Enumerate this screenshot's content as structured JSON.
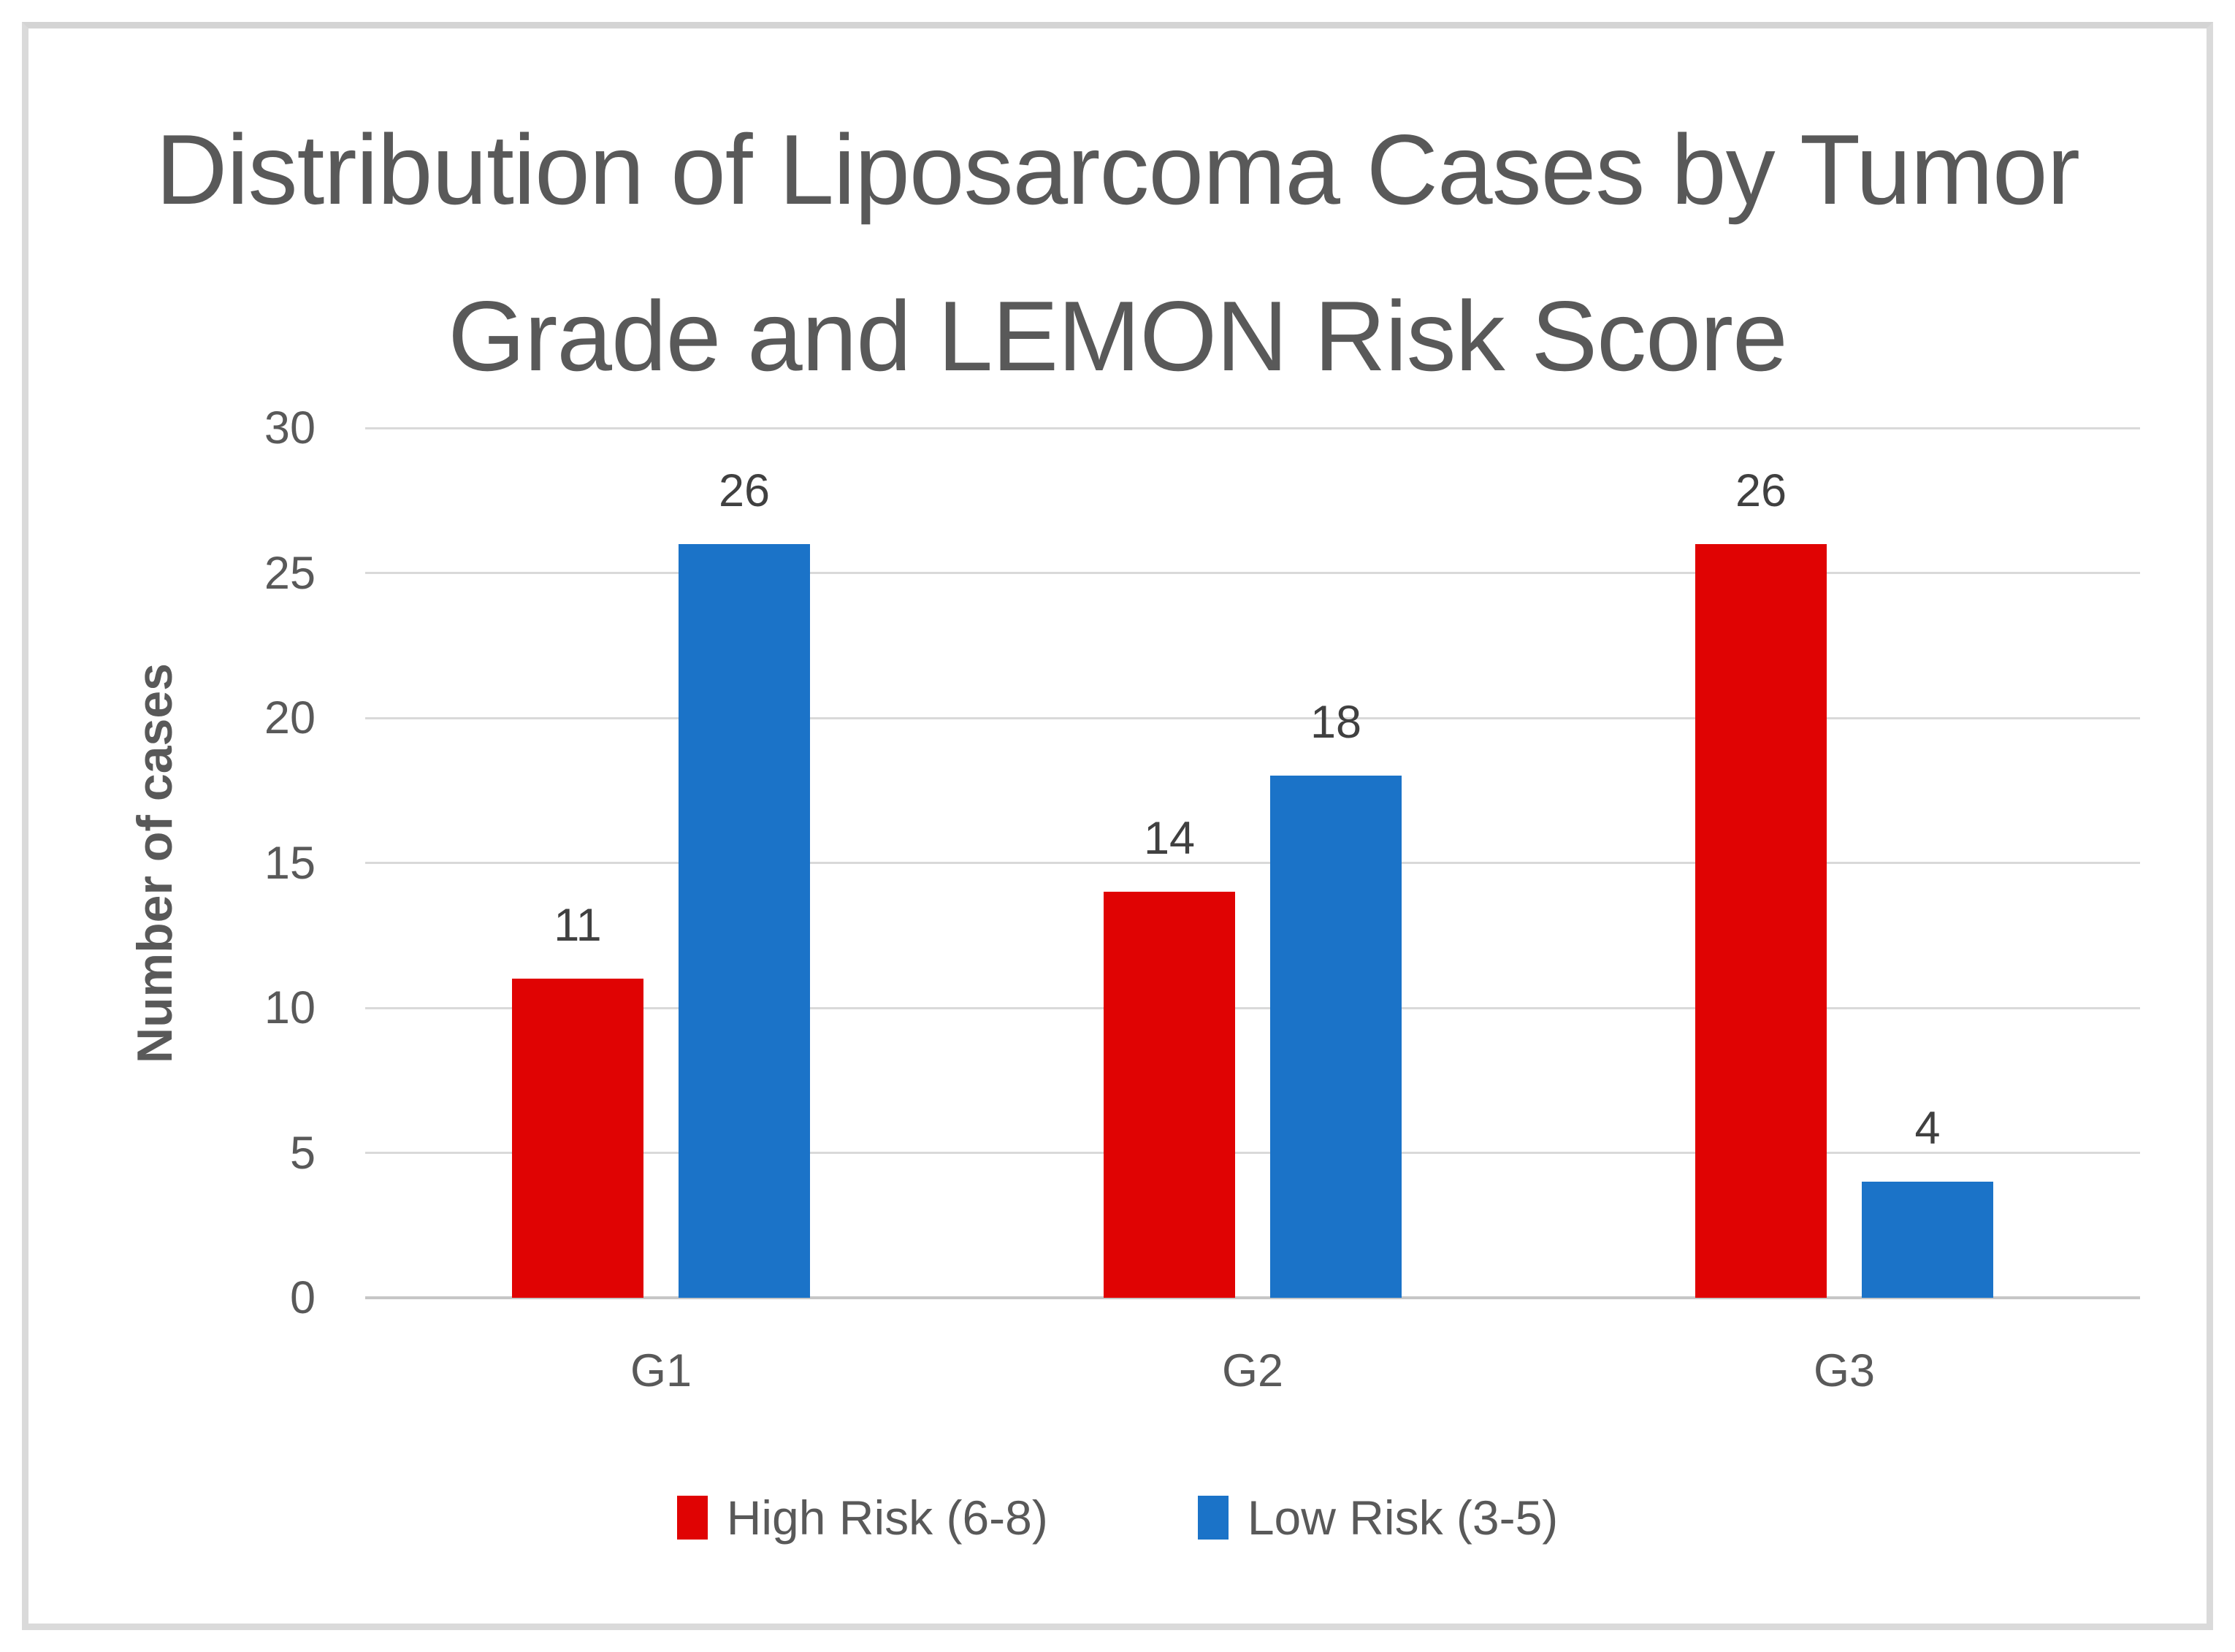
{
  "page": {
    "background_color": "#FFFFFF",
    "frame_border_color": "#DADADA"
  },
  "chart_data": {
    "type": "bar",
    "title": "Distribution of Liposarcoma Cases by Tumor Grade and LEMON Risk Score",
    "title_lines": [
      "Distribution of Liposarcoma Cases by Tumor",
      "Grade and LEMON Risk Score"
    ],
    "xlabel": "",
    "ylabel": "Number of cases",
    "categories": [
      "G1",
      "G2",
      "G3"
    ],
    "series": [
      {
        "name": "High Risk (6-8)",
        "color": "#E00303",
        "values": [
          11,
          14,
          26
        ]
      },
      {
        "name": "Low Risk (3-5)",
        "color": "#1B73C8",
        "values": [
          26,
          18,
          4
        ]
      }
    ],
    "data_labels": [
      {
        "series": "High Risk (6-8)",
        "values": [
          "11",
          "14",
          "26"
        ]
      },
      {
        "series": "Low Risk (3-5)",
        "values": [
          "26",
          "18",
          "4"
        ]
      }
    ],
    "ylim": [
      0,
      30
    ],
    "yticks": [
      "0",
      "5",
      "10",
      "15",
      "20",
      "25",
      "30"
    ],
    "grid": true,
    "gridline_color": "#D9D9D9",
    "zero_line_color": "#C6C6C6",
    "legend_position": "bottom",
    "text_colors": {
      "title": "#595959",
      "ticks": "#595959",
      "axis_title": "#595959",
      "data_labels": "#404040",
      "legend": "#595959"
    }
  }
}
